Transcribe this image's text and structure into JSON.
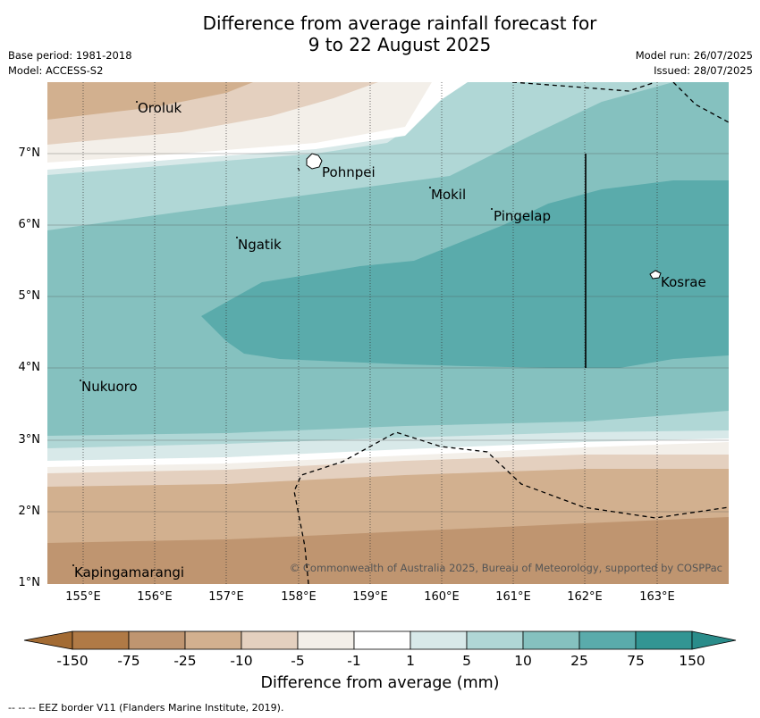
{
  "title": {
    "line1": "Difference from average rainfall forecast for",
    "line2": "9 to 22 August 2025"
  },
  "meta": {
    "base_period": "Base period: 1981-2018",
    "model": "Model: ACCESS-S2",
    "model_run": "Model run: 26/07/2025",
    "issued": "Issued: 28/07/2025"
  },
  "lat_labels": [
    "7°N",
    "6°N",
    "5°N",
    "4°N",
    "3°N",
    "2°N",
    "1°N"
  ],
  "lon_labels": [
    "155°E",
    "156°E",
    "157°E",
    "158°E",
    "159°E",
    "160°E",
    "161°E",
    "162°E",
    "163°E"
  ],
  "places": {
    "oroluk": "Oroluk",
    "pohnpei": "Pohnpei",
    "mokil": "Mokil",
    "pingelap": "Pingelap",
    "ngatik": "Ngatik",
    "kosrae": "Kosrae",
    "nukuoro": "Nukuoro",
    "kapingamarangi": "Kapingamarangi"
  },
  "copyright": "© Commonwealth of Australia 2025, Bureau of Meteorology, supported by COSPPac",
  "colorbar": {
    "title": "Difference from average (mm)",
    "ticks": [
      "-150",
      "-75",
      "-25",
      "-10",
      "-5",
      "-1",
      "1",
      "5",
      "10",
      "25",
      "75",
      "150"
    ],
    "colors": [
      "#b07a46",
      "#bf9570",
      "#d2b08f",
      "#e4d0bf",
      "#f3efe9",
      "#ffffff",
      "#d8e9e9",
      "#b0d7d6",
      "#85c1bf",
      "#5aabab",
      "#329593"
    ]
  },
  "footer": "--  --  -- EEZ border V11 (Flanders Marine Institute, 2019)."
}
